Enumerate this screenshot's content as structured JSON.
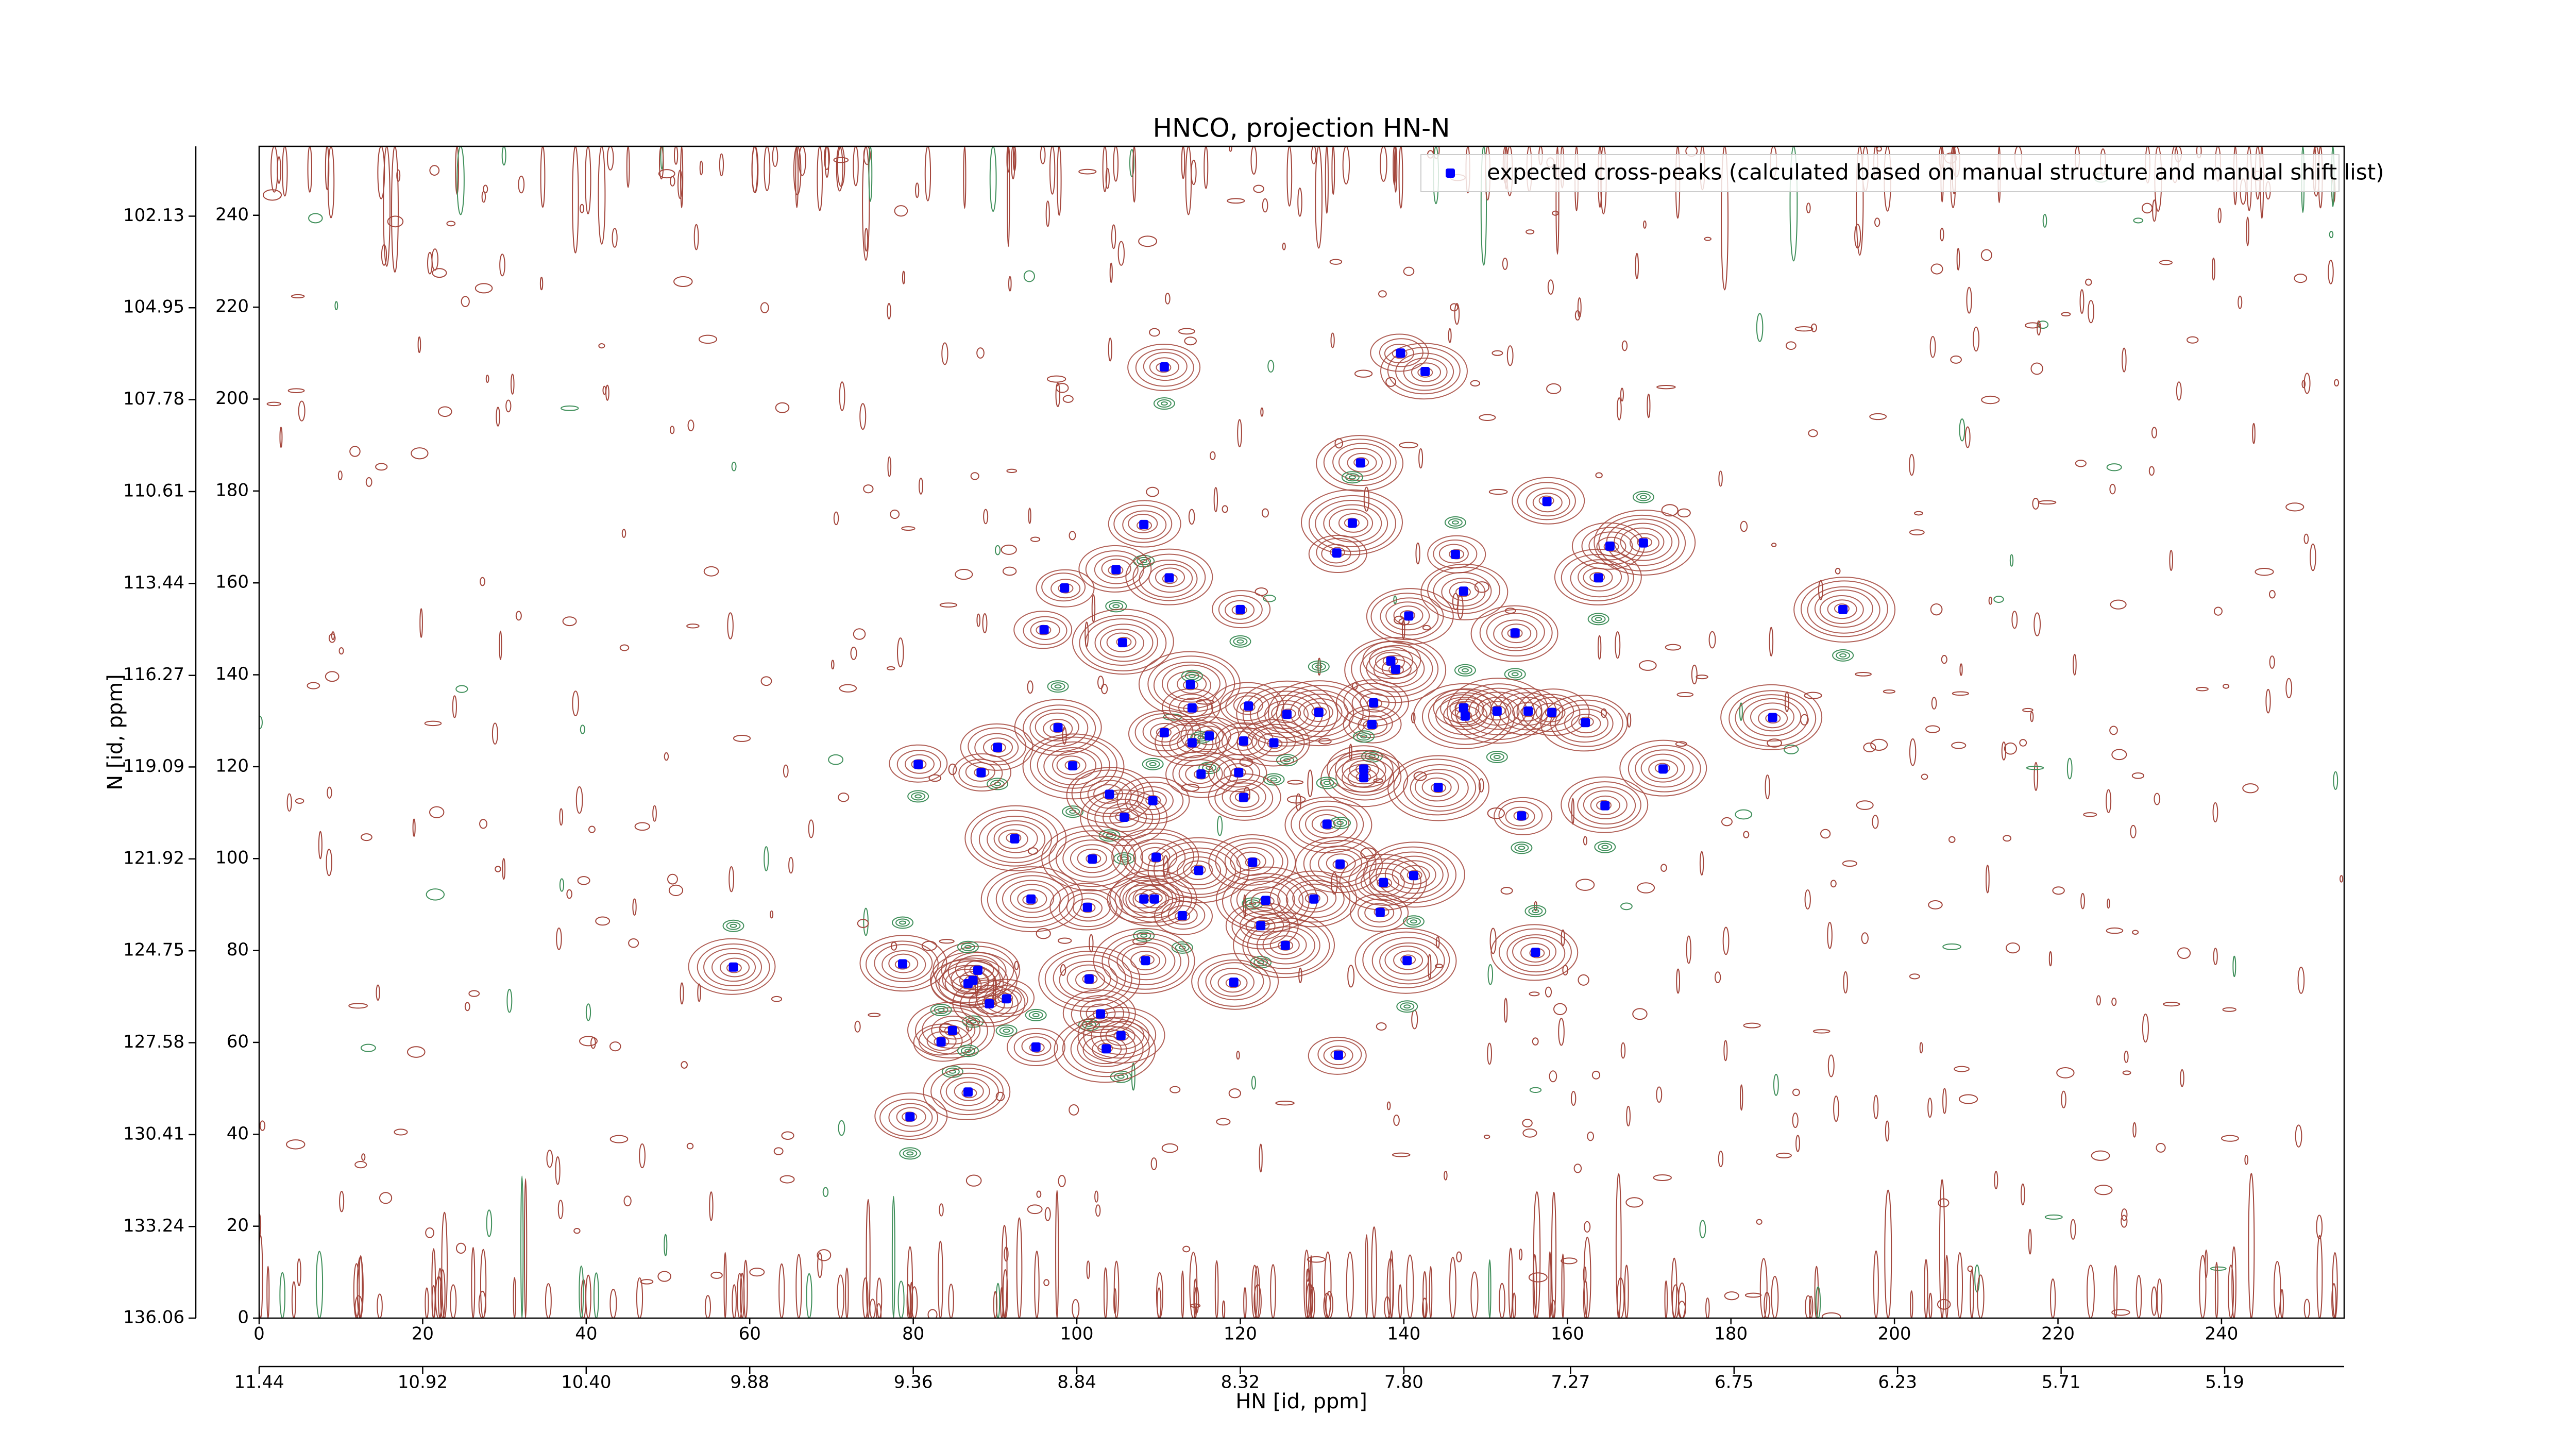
{
  "chart_data": {
    "type": "scatter",
    "title": "HNCO, projection HN-N",
    "x_label": "HN [id, ppm]",
    "y_label": "N [id, ppm]",
    "xlim": [
      0,
      255
    ],
    "ylim": [
      0,
      255
    ],
    "xticks": [
      0,
      20,
      40,
      60,
      80,
      100,
      120,
      140,
      160,
      180,
      200,
      220,
      240
    ],
    "yticks": [
      0,
      20,
      40,
      60,
      80,
      100,
      120,
      140,
      160,
      180,
      200,
      220,
      240
    ],
    "x2lim": [
      11.44,
      4.81
    ],
    "x2ticks": [
      11.44,
      10.92,
      {
        "value": 10.4,
        "label": "10.40"
      },
      9.88,
      9.36,
      8.84,
      8.32,
      {
        "value": 7.8,
        "label": "7.80"
      },
      7.27,
      6.75,
      6.23,
      5.71,
      5.19
    ],
    "y2lim": [
      136.06,
      99.98
    ],
    "y2ticks": [
      136.06,
      133.24,
      130.41,
      127.58,
      124.75,
      121.92,
      119.09,
      116.27,
      113.44,
      110.61,
      107.78,
      104.95,
      102.13
    ],
    "contour_colors": [
      "#a3453b",
      "#3f8f5a"
    ],
    "legend": "upper right",
    "series": [
      {
        "name": "expected cross-peaks (calculated based on manual structure and manual shift list)",
        "color": "#0000ff",
        "x": [
          110.7,
          139.6,
          142.6,
          134.7,
          157.5,
          108.2,
          133.7,
          131.8,
          146.3,
          165.2,
          169.3,
          104.8,
          111.3,
          98.5,
          147.3,
          163.8,
          120.0,
          140.6,
          193.7,
          96.0,
          105.6,
          153.6,
          138.4,
          139.0,
          113.9,
          136.3,
          147.3,
          147.5,
          151.4,
          155.2,
          158.1,
          121.0,
          114.1,
          129.6,
          125.7,
          162.2,
          185.1,
          97.7,
          110.7,
          116.2,
          120.4,
          124.1,
          136.1,
          90.3,
          114.1,
          119.8,
          115.2,
          99.5,
          80.6,
          88.3,
          135.1,
          135.1,
          144.2,
          171.7,
          104.0,
          109.3,
          120.4,
          105.8,
          154.4,
          164.6,
          130.6,
          92.4,
          101.9,
          109.7,
          121.5,
          132.2,
          114.9,
          141.2,
          137.5,
          94.4,
          101.3,
          108.2,
          109.5,
          123.1,
          129.0,
          112.9,
          137.1,
          122.5,
          125.5,
          78.7,
          58.0,
          108.4,
          140.4,
          156.1,
          87.9,
          101.5,
          87.3,
          86.7,
          119.2,
          91.4,
          89.3,
          102.9,
          84.8,
          105.4,
          83.4,
          95.0,
          103.6,
          132.0,
          86.7,
          79.6
        ],
        "values": [
          207.0,
          210.0,
          206.0,
          186.1,
          177.7,
          172.7,
          173.0,
          166.5,
          166.2,
          168.0,
          168.7,
          162.9,
          161.1,
          158.9,
          158.2,
          161.1,
          154.2,
          152.8,
          154.2,
          149.8,
          147.0,
          149.1,
          143.0,
          141.2,
          137.9,
          133.9,
          132.8,
          131.0,
          132.1,
          132.1,
          131.8,
          133.2,
          132.8,
          131.8,
          131.4,
          129.6,
          130.7,
          128.5,
          127.4,
          126.7,
          125.6,
          125.2,
          129.2,
          124.2,
          125.2,
          118.7,
          118.4,
          120.2,
          120.5,
          118.7,
          119.5,
          117.6,
          115.5,
          119.5,
          114.0,
          112.6,
          113.3,
          109.0,
          109.3,
          111.5,
          107.5,
          104.3,
          99.9,
          100.3,
          99.2,
          98.8,
          97.4,
          96.3,
          94.8,
          91.2,
          89.4,
          91.2,
          91.2,
          90.9,
          91.2,
          87.6,
          88.3,
          85.4,
          81.1,
          77.1,
          76.4,
          77.8,
          77.8,
          79.6,
          75.7,
          73.8,
          73.5,
          72.8,
          73.1,
          69.5,
          68.4,
          66.2,
          62.6,
          61.5,
          60.1,
          59.0,
          58.6,
          57.2,
          49.2,
          43.8
        ]
      }
    ]
  }
}
